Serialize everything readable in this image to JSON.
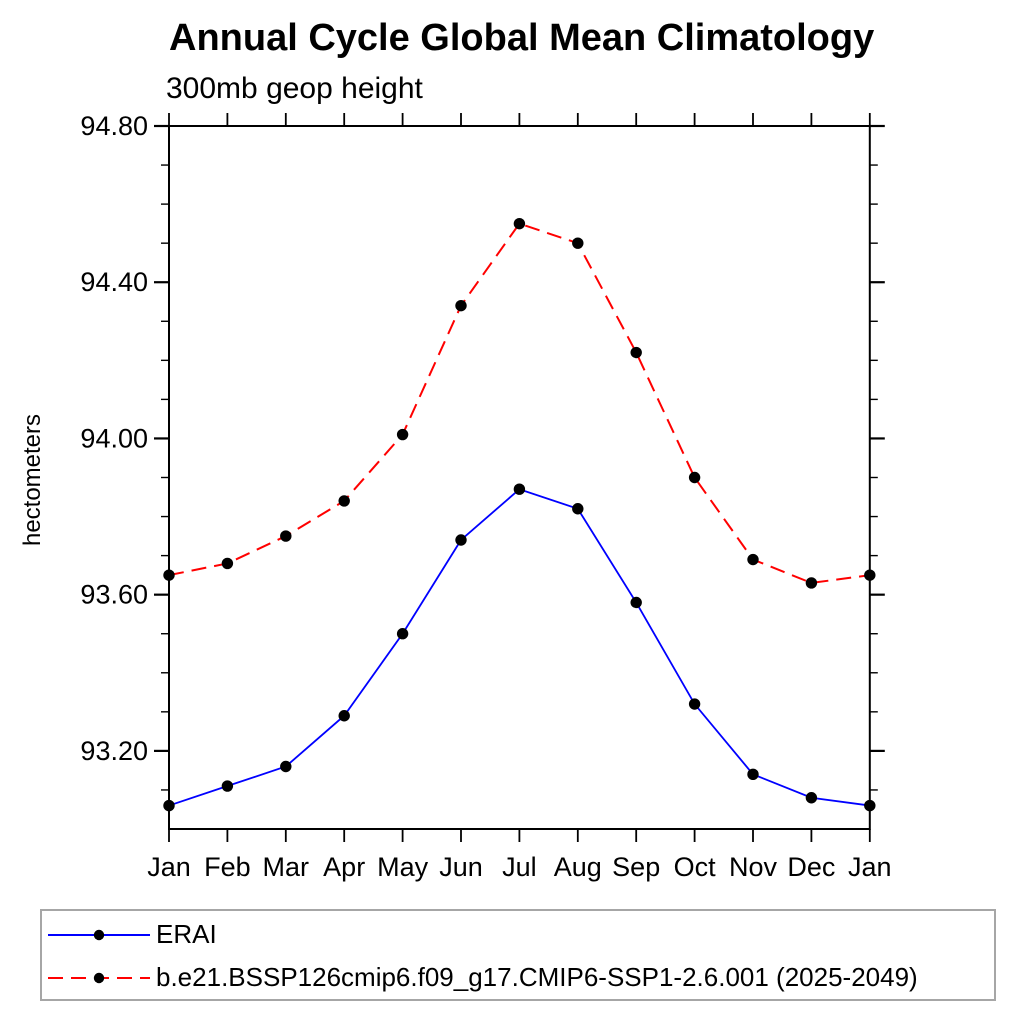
{
  "page": {
    "background": "#ffffff"
  },
  "chart_data": {
    "type": "line",
    "title": "Annual Cycle Global Mean Climatology",
    "subtitle": "300mb geop height",
    "xlabel": "",
    "ylabel": "hectometers",
    "categories": [
      "Jan",
      "Feb",
      "Mar",
      "Apr",
      "May",
      "Jun",
      "Jul",
      "Aug",
      "Sep",
      "Oct",
      "Nov",
      "Dec",
      "Jan"
    ],
    "ylim": [
      93.0,
      94.8
    ],
    "y_major_tick_labels": [
      "94.80",
      "94.40",
      "94.00",
      "93.60",
      "93.20"
    ],
    "y_minor_step": 0.1,
    "grid": false,
    "legend_position": "bottom-left-box",
    "series": [
      {
        "name": "ERAI",
        "color": "#0000ff",
        "line_style": "solid",
        "marker": "filled-circle",
        "marker_color": "#000000",
        "values": [
          93.06,
          93.11,
          93.16,
          93.29,
          93.5,
          93.74,
          93.87,
          93.82,
          93.58,
          93.32,
          93.14,
          93.08,
          93.06
        ]
      },
      {
        "name": "b.e21.BSSP126cmip6.f09_g17.CMIP6-SSP1-2.6.001 (2025-2049)",
        "color": "#ff0000",
        "line_style": "dashed",
        "marker": "filled-circle",
        "marker_color": "#000000",
        "values": [
          93.65,
          93.68,
          93.75,
          93.84,
          94.01,
          94.34,
          94.55,
          94.5,
          94.22,
          93.9,
          93.69,
          93.63,
          93.65
        ]
      }
    ],
    "legend_border_color": "#a6a6a6"
  }
}
